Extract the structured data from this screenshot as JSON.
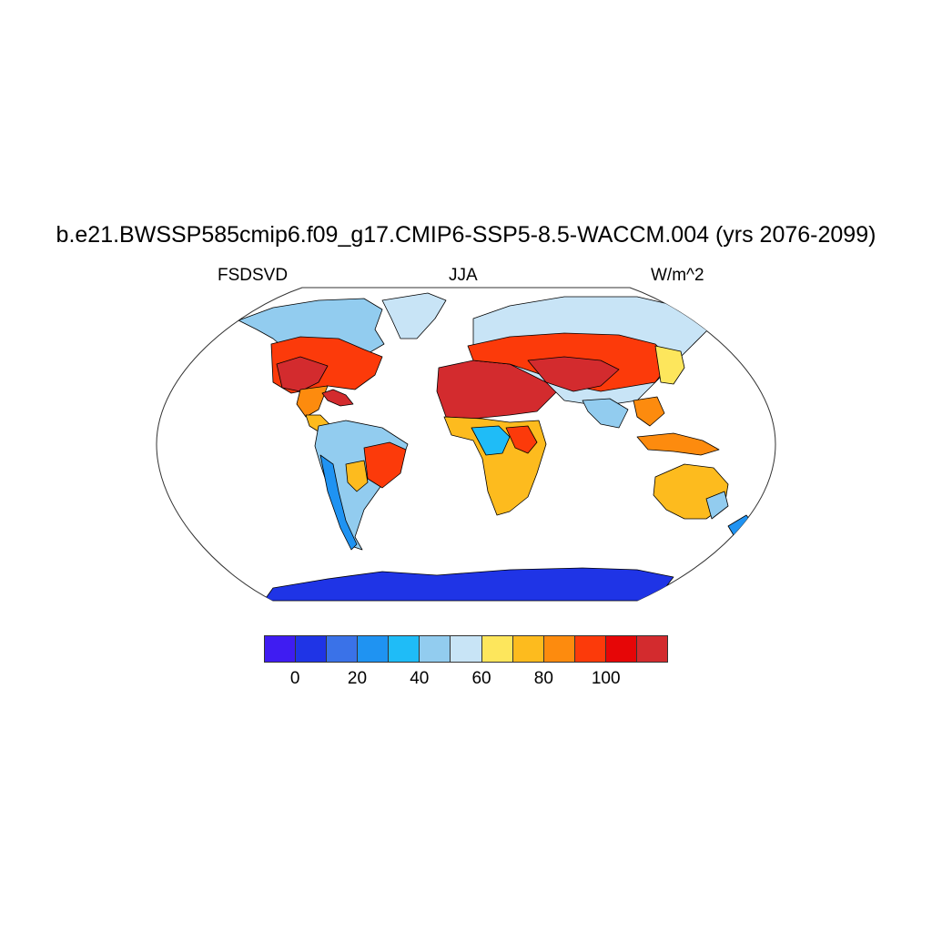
{
  "title": "b.e21.BWSSP585cmip6.f09_g17.CMIP6-SSP5-8.5-WACCM.004 (yrs 2076-2099)",
  "subtitle_left": "FSDSVD",
  "subtitle_center": "JJA",
  "subtitle_right": "W/m^2",
  "colorbar": {
    "colors": [
      "#3f1cf2",
      "#1f34e6",
      "#3a72e8",
      "#1f93f2",
      "#1fbcf7",
      "#92ccef",
      "#c8e4f6",
      "#fde65c",
      "#fdbb1e",
      "#fd8b0e",
      "#fc3a0a",
      "#e60607",
      "#d32b2e"
    ],
    "tick_labels": [
      "0",
      "20",
      "40",
      "60",
      "80",
      "100"
    ]
  },
  "colors": {
    "ocean": "#ffffff",
    "coastline": "#000000"
  }
}
